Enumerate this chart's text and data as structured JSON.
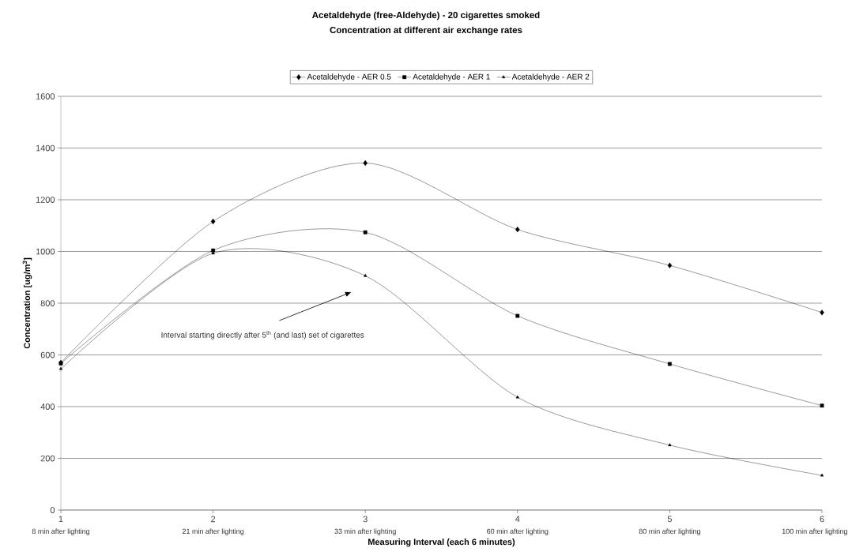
{
  "chart_data": {
    "type": "line",
    "title": "Acetaldehyde (free-Aldehyde) - 20 cigarettes smoked",
    "subtitle": "Concentration at different air exchange rates",
    "xlabel": "Measuring Interval (each 6 minutes)",
    "ylabel": "Concentration [ug/m$^{3}$]",
    "x": [
      1,
      2,
      3,
      4,
      5,
      6
    ],
    "series": [
      {
        "name": "Acetaldehyde - AER 0.5",
        "color": "#000000",
        "marker": "diamond",
        "values": [
          570,
          1116,
          1342,
          1085,
          946,
          764
        ]
      },
      {
        "name": "Acetaldehyde - AER 1",
        "color": "#000000",
        "marker": "square",
        "values": [
          567,
          1004,
          1074,
          751,
          565,
          404
        ]
      },
      {
        "name": "Acetaldehyde - AER 2",
        "color": "#000000",
        "marker": "triangle",
        "values": [
          546,
          993,
          906,
          436,
          251,
          134
        ]
      }
    ],
    "xlim": [
      1,
      6
    ],
    "xticks": [
      1,
      2,
      3,
      4,
      5,
      6
    ],
    "ylim": [
      0,
      1600
    ],
    "yticks": [
      0,
      200,
      400,
      600,
      800,
      1000,
      1200,
      1400,
      1600
    ],
    "grid": "y",
    "legend": "top",
    "annotations": [
      "8 min after lighting",
      "21 min after lighting",
      "33 min after lighting",
      "60 min after lighting",
      "80 min after lighting",
      "100 min after lighting",
      "Interval starting directly after 5$^{th}$ (and last) set of cigarettes"
    ]
  }
}
